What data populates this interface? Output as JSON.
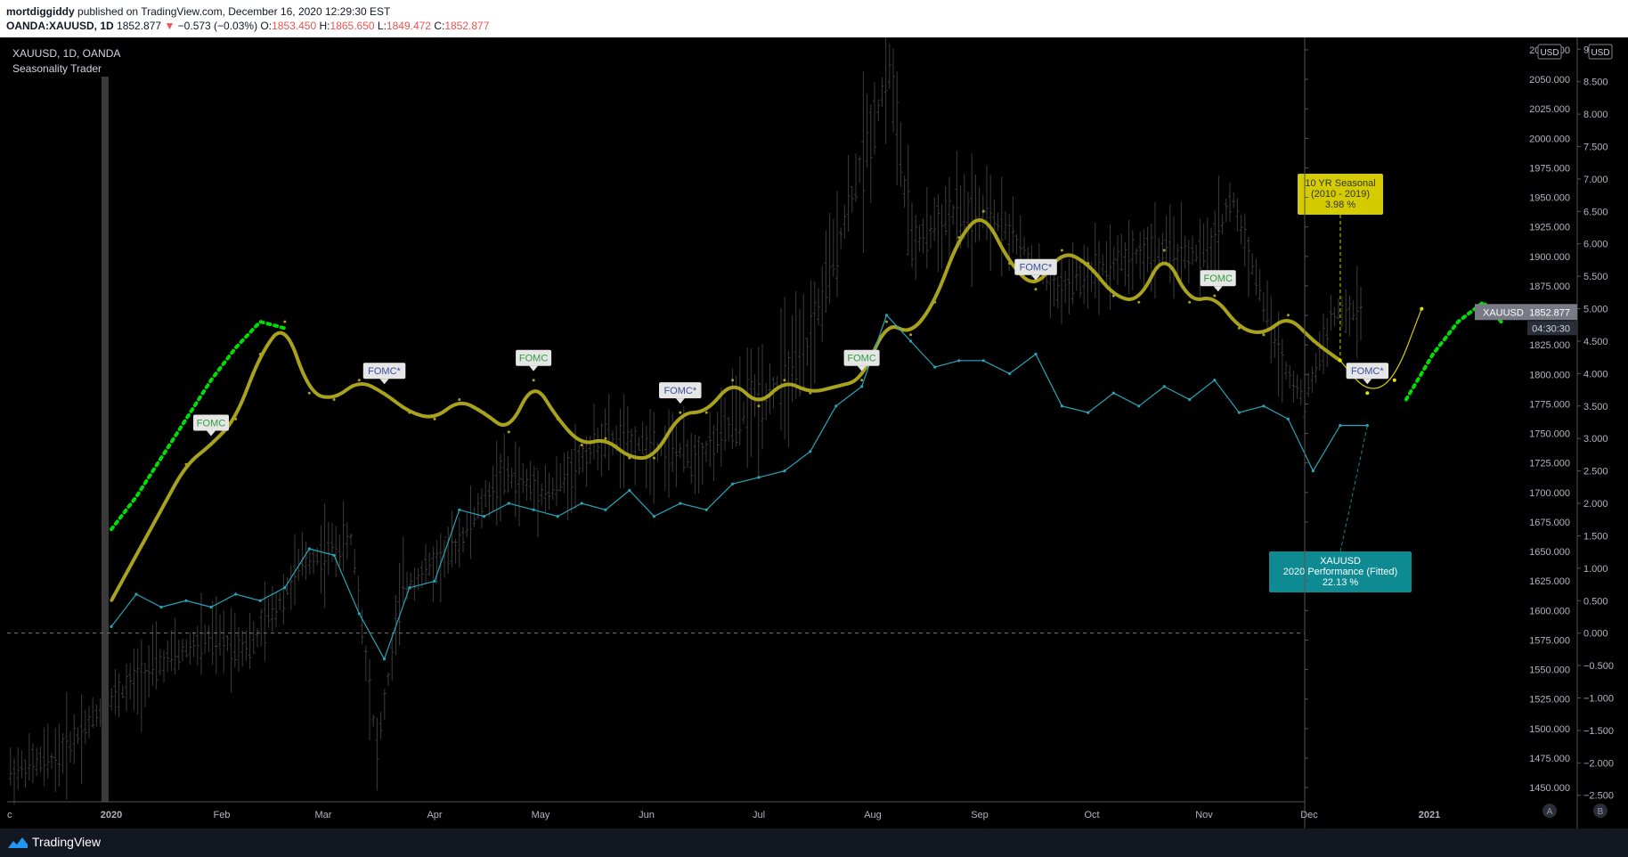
{
  "header": {
    "author": "mortdiggiddy",
    "published_text": "published on TradingView.com, December 16, 2020 12:29:30 EST",
    "symbol_line": "OANDA:XAUUSD, 1D",
    "last_price": "1852.877",
    "change": "−0.573 (−0.03%)",
    "o_label": "O:",
    "o_value": "1853.450",
    "h_label": "H:",
    "h_value": "1865.650",
    "l_label": "L:",
    "l_value": "1849.472",
    "c_label": "C:",
    "c_value": "1852.877"
  },
  "legend": {
    "title": "XAUUSD, 1D, OANDA",
    "indicator": "Seasonality Trader"
  },
  "footer": {
    "brand": "TradingView"
  },
  "axis_buttons": {
    "usd_left": "USD",
    "usd_right": "USD",
    "auto": "A",
    "log": "B"
  },
  "price_badge": {
    "symbol": "XAUUSD",
    "price": "1852.877",
    "countdown": "04:30:30"
  },
  "colors": {
    "seasonal": "#a8a21c",
    "performance": "#26a6b8",
    "projection": "#00e000",
    "candles": "#3c3c3c",
    "fomc_text_green": "#2e9e3e",
    "fomc_text_blue": "#3a4fa0",
    "seasonal_label_bg": "#d4cc00",
    "performance_label_bg": "#0e8a93"
  },
  "chart_data": {
    "type": "line",
    "title": "XAUUSD, 1D, OANDA",
    "x_tick_labels": [
      "c",
      "2020",
      "Feb",
      "Mar",
      "Apr",
      "May",
      "Jun",
      "Jul",
      "Aug",
      "Sep",
      "Oct",
      "Nov",
      "Dec",
      "2021"
    ],
    "price_axis": {
      "ticks": [
        "2075.000",
        "2050.000",
        "2025.000",
        "2000.000",
        "1975.000",
        "1950.000",
        "1925.000",
        "1900.000",
        "1875.000",
        "1850.000",
        "1825.000",
        "1800.000",
        "1775.000",
        "1750.000",
        "1725.000",
        "1700.000",
        "1675.000",
        "1650.000",
        "1625.000",
        "1600.000",
        "1575.000",
        "1550.000",
        "1525.000",
        "1500.000",
        "1475.000",
        "1450.000"
      ],
      "range": [
        1438,
        2081
      ]
    },
    "percent_axis": {
      "ticks": [
        "9.000",
        "8.500",
        "8.000",
        "7.500",
        "7.000",
        "6.500",
        "6.000",
        "5.500",
        "5.000",
        "4.500",
        "4.000",
        "3.500",
        "3.000",
        "2.500",
        "2.000",
        "1.500",
        "1.000",
        "0.500",
        "0.000",
        "−0.500",
        "−1.000",
        "−1.500",
        "−2.000",
        "−2.500"
      ],
      "range": [
        -2.6,
        9.1
      ]
    },
    "series": [
      {
        "name": "10 YR Seasonal (2010 - 2019)",
        "label_lines": [
          "10 YR Seasonal",
          "(2010 - 2019)",
          "3.98 %"
        ],
        "unit": "%",
        "x": [
          "2020-01-01",
          "2020-01-08",
          "2020-01-15",
          "2020-01-22",
          "2020-01-29",
          "2020-02-05",
          "2020-02-12",
          "2020-02-19",
          "2020-02-26",
          "2020-03-04",
          "2020-03-11",
          "2020-03-18",
          "2020-03-25",
          "2020-04-01",
          "2020-04-08",
          "2020-04-15",
          "2020-04-22",
          "2020-04-29",
          "2020-05-06",
          "2020-05-13",
          "2020-05-20",
          "2020-05-27",
          "2020-06-03",
          "2020-06-10",
          "2020-06-17",
          "2020-06-24",
          "2020-07-01",
          "2020-07-08",
          "2020-07-15",
          "2020-07-22",
          "2020-07-29",
          "2020-08-05",
          "2020-08-12",
          "2020-08-19",
          "2020-08-26",
          "2020-09-02",
          "2020-09-09",
          "2020-09-16",
          "2020-09-23",
          "2020-09-30",
          "2020-10-07",
          "2020-10-14",
          "2020-10-21",
          "2020-10-28",
          "2020-11-04",
          "2020-11-11",
          "2020-11-18",
          "2020-11-25",
          "2020-12-02",
          "2020-12-09",
          "2020-12-16",
          "2020-12-23",
          "2020-12-30"
        ],
        "y": [
          0.5,
          1.2,
          1.9,
          2.6,
          2.9,
          3.3,
          4.3,
          4.8,
          3.7,
          3.6,
          3.9,
          3.7,
          3.4,
          3.3,
          3.6,
          3.4,
          3.1,
          3.9,
          3.3,
          2.9,
          3.0,
          2.7,
          2.7,
          3.4,
          3.4,
          3.9,
          3.5,
          3.9,
          3.7,
          3.8,
          3.9,
          4.8,
          4.6,
          5.1,
          6.1,
          6.5,
          5.7,
          5.3,
          5.9,
          5.7,
          5.2,
          5.1,
          5.9,
          5.1,
          5.2,
          4.7,
          4.6,
          4.9,
          4.5,
          4.2,
          3.7,
          3.9,
          5.0
        ]
      },
      {
        "name": "XAUUSD 2020 Performance (Fitted)",
        "label_lines": [
          "XAUUSD",
          "2020 Performance (Fitted)",
          "22.13 %"
        ],
        "unit": "%",
        "x": [
          "2020-01-01",
          "2020-01-08",
          "2020-01-15",
          "2020-01-22",
          "2020-01-29",
          "2020-02-05",
          "2020-02-12",
          "2020-02-19",
          "2020-02-26",
          "2020-03-04",
          "2020-03-11",
          "2020-03-18",
          "2020-03-25",
          "2020-04-01",
          "2020-04-08",
          "2020-04-15",
          "2020-04-22",
          "2020-04-29",
          "2020-05-06",
          "2020-05-13",
          "2020-05-20",
          "2020-05-27",
          "2020-06-03",
          "2020-06-10",
          "2020-06-17",
          "2020-06-24",
          "2020-07-01",
          "2020-07-08",
          "2020-07-15",
          "2020-07-22",
          "2020-07-29",
          "2020-08-05",
          "2020-08-12",
          "2020-08-19",
          "2020-08-26",
          "2020-09-02",
          "2020-09-09",
          "2020-09-16",
          "2020-09-23",
          "2020-09-30",
          "2020-10-07",
          "2020-10-14",
          "2020-10-21",
          "2020-10-28",
          "2020-11-04",
          "2020-11-11",
          "2020-11-18",
          "2020-11-25",
          "2020-12-02",
          "2020-12-09",
          "2020-12-16"
        ],
        "y": [
          0.1,
          0.6,
          0.4,
          0.5,
          0.4,
          0.6,
          0.5,
          0.7,
          1.3,
          1.2,
          0.3,
          -0.4,
          0.7,
          0.8,
          1.9,
          1.8,
          2.0,
          1.9,
          1.8,
          2.0,
          1.9,
          2.2,
          1.8,
          2.0,
          1.9,
          2.3,
          2.4,
          2.5,
          2.8,
          3.5,
          3.8,
          4.9,
          4.5,
          4.1,
          4.2,
          4.2,
          4.0,
          4.3,
          3.5,
          3.4,
          3.7,
          3.5,
          3.8,
          3.6,
          3.9,
          3.4,
          3.5,
          3.3,
          2.5,
          3.2,
          3.2
        ]
      },
      {
        "name": "Seasonal projection",
        "unit": "%",
        "x": [
          "2020-01-01",
          "2020-01-08",
          "2020-01-15",
          "2020-01-22",
          "2020-01-29",
          "2020-02-05",
          "2020-02-12",
          "2020-02-19",
          "2020-12-26",
          "2021-01-02",
          "2021-01-09",
          "2021-01-16",
          "2021-01-21"
        ],
        "y": [
          1.6,
          2.1,
          2.7,
          3.3,
          3.9,
          4.4,
          4.8,
          4.7,
          3.6,
          4.3,
          4.8,
          5.1,
          4.8
        ]
      },
      {
        "name": "XAUUSD daily bars",
        "unit": "USD",
        "x": [
          "2019-12-02",
          "2019-12-16",
          "2019-12-30",
          "2020-01-13",
          "2020-01-27",
          "2020-02-10",
          "2020-02-24",
          "2020-03-09",
          "2020-03-16",
          "2020-03-23",
          "2020-04-06",
          "2020-04-20",
          "2020-05-04",
          "2020-05-18",
          "2020-06-01",
          "2020-06-15",
          "2020-06-29",
          "2020-07-13",
          "2020-07-27",
          "2020-08-06",
          "2020-08-12",
          "2020-08-24",
          "2020-09-07",
          "2020-09-21",
          "2020-10-05",
          "2020-10-19",
          "2020-11-02",
          "2020-11-09",
          "2020-11-23",
          "2020-11-30",
          "2020-12-07",
          "2020-12-15"
        ],
        "y": [
          1463,
          1476,
          1520,
          1552,
          1575,
          1572,
          1640,
          1660,
          1480,
          1620,
          1650,
          1715,
          1700,
          1745,
          1740,
          1730,
          1775,
          1808,
          1960,
          2060,
          1910,
          1935,
          1930,
          1870,
          1895,
          1905,
          1900,
          1950,
          1810,
          1780,
          1850,
          1853
        ]
      }
    ],
    "annotations": [
      {
        "label": "FOMC",
        "date": "2020-01-29",
        "on": "seasonal"
      },
      {
        "label": "FOMC*",
        "date": "2020-03-18",
        "on": "seasonal"
      },
      {
        "label": "FOMC",
        "date": "2020-04-29",
        "on": "seasonal"
      },
      {
        "label": "FOMC*",
        "date": "2020-06-10",
        "on": "seasonal"
      },
      {
        "label": "FOMC",
        "date": "2020-07-29",
        "on": "seasonal"
      },
      {
        "label": "FOMC*",
        "date": "2020-09-16",
        "on": "seasonal"
      },
      {
        "label": "FOMC",
        "date": "2020-11-05",
        "on": "seasonal"
      },
      {
        "label": "FOMC*",
        "date": "2020-12-16",
        "on": "seasonal"
      }
    ],
    "baseline_percent": 0,
    "grid": false,
    "legend": "top-left"
  }
}
